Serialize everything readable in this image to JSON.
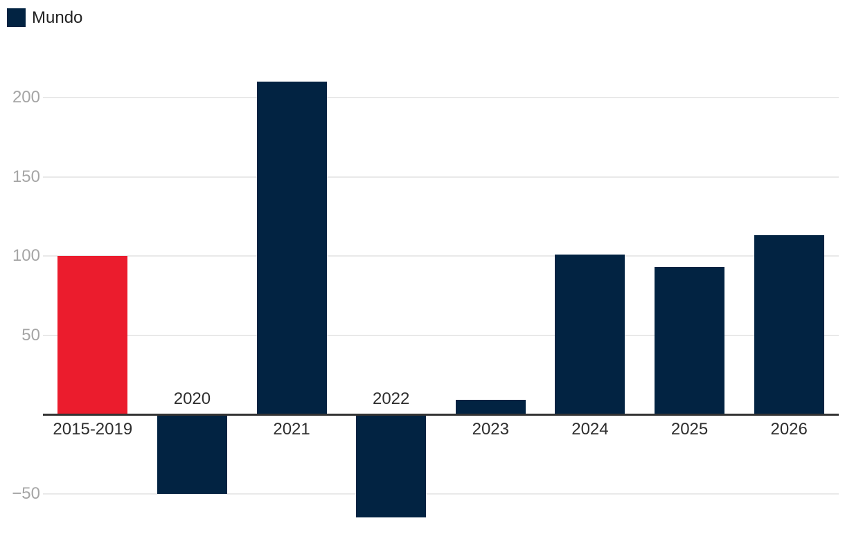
{
  "legend": {
    "label": "Mundo"
  },
  "chart_data": {
    "type": "bar",
    "title": "",
    "xlabel": "",
    "ylabel": "",
    "series_name": "Mundo",
    "categories": [
      "2015-2019",
      "2020",
      "2021",
      "2022",
      "2023",
      "2024",
      "2025",
      "2026"
    ],
    "values": [
      100,
      -50,
      210,
      -65,
      9,
      101,
      93,
      113
    ],
    "highlight_index": 0,
    "yticks": [
      200,
      150,
      100,
      50,
      -50
    ],
    "ylim": [
      -80,
      230
    ],
    "grid": true,
    "legend_position": "top-left",
    "colors": {
      "bar": "#022342",
      "highlight": "#eb1c2d",
      "grid": "#e9e9e9",
      "axis": "#333333",
      "tick_label": "#a5a5a5",
      "category_label": "#2e2e2e",
      "legend_text": "#222222",
      "background": "#ffffff"
    }
  }
}
